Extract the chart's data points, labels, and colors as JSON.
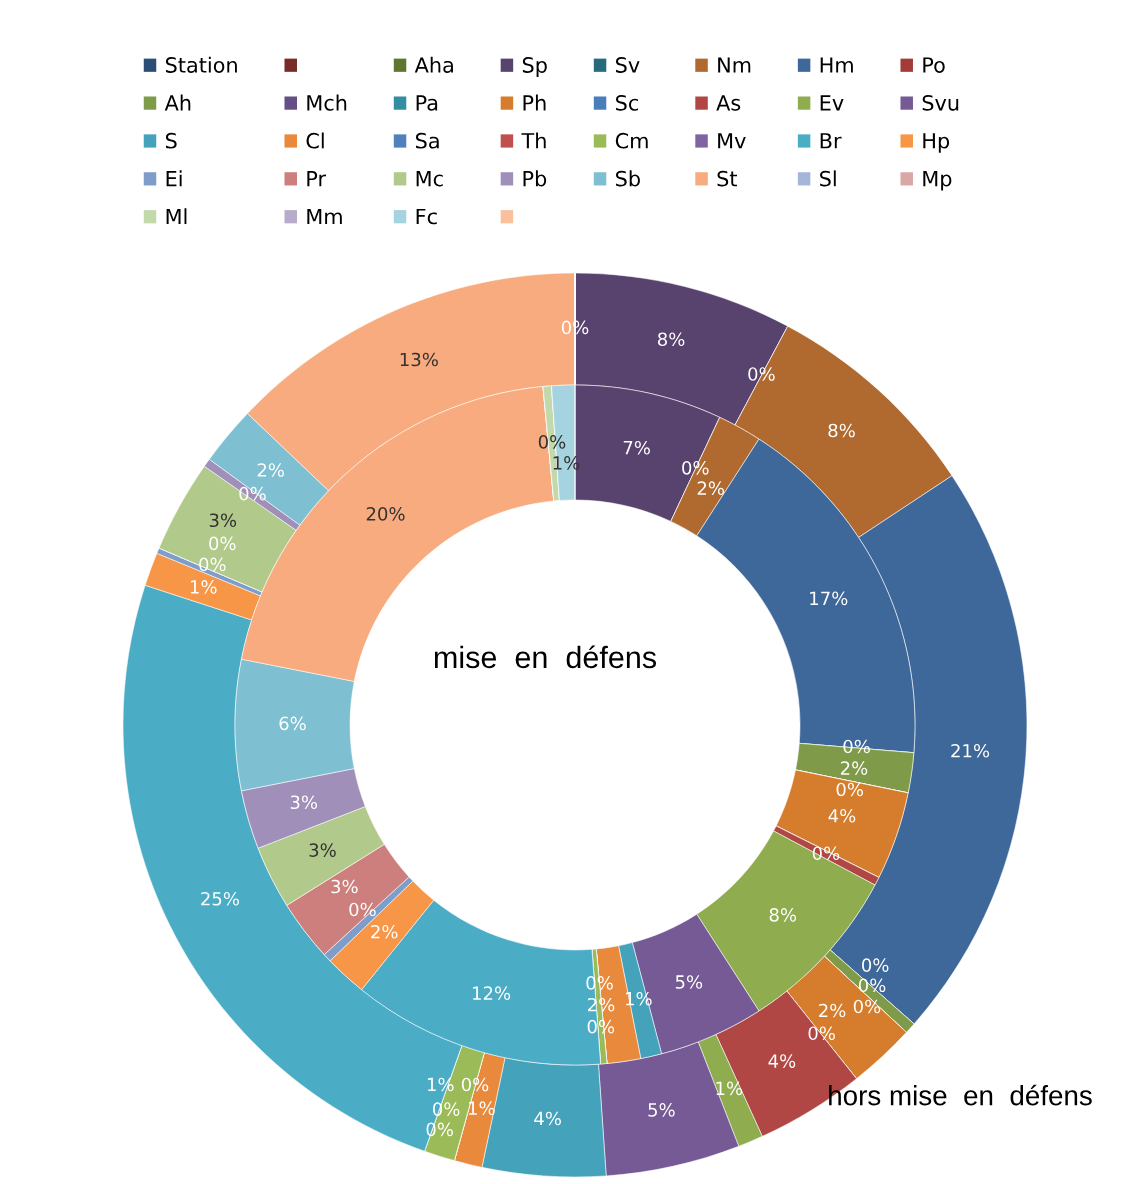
{
  "chart_data": {
    "type": "donut",
    "categories": [
      "Station",
      null,
      "Aha",
      "Sp",
      "Sv",
      "Nm",
      "Hm",
      "Po",
      "Ah",
      "Mch",
      "Pa",
      "Ph",
      "Sc",
      "As",
      "Ev",
      "Svu",
      "S",
      "Cl",
      "Sa",
      "Th",
      "Cm",
      "Mv",
      "Br",
      "Hp",
      "Ei",
      "Pr",
      "Mc",
      "Pb",
      "Sb",
      "St",
      "Sl",
      "Mp",
      "Ml",
      "Mm",
      "Fc",
      null
    ],
    "colors": [
      "#2c4d75",
      "#772c2a",
      "#5f7530",
      "#58436f",
      "#276a7c",
      "#b0692f",
      "#3f689a",
      "#a33b39",
      "#7f9a48",
      "#664f84",
      "#338ea1",
      "#d57d2c",
      "#4a7ebb",
      "#b04744",
      "#8fac4f",
      "#755a96",
      "#44a2ba",
      "#e8893c",
      "#4f81bd",
      "#c0504d",
      "#9bbb59",
      "#8064a2",
      "#4bacc6",
      "#f79646",
      "#7e9dc9",
      "#cd7f7d",
      "#b1c98a",
      "#a08fb8",
      "#7ebfd1",
      "#f7ab7e",
      "#a5b6d9",
      "#d9a7a6",
      "#c4d9ab",
      "#b8acca",
      "#a6d3e0",
      "#fac09c"
    ],
    "series": [
      {
        "values": [
          0,
          0,
          0,
          7.8,
          0,
          7.9,
          20.8,
          0,
          0.4,
          0,
          0,
          2.4,
          0,
          3.9,
          0.9,
          4.8,
          4.4,
          1.0,
          0,
          0,
          1.1,
          0,
          24.6,
          1.2,
          0.2,
          0,
          3.3,
          0.3,
          2.1,
          12.9,
          0,
          0,
          0,
          0,
          0,
          0
        ],
        "value_labels": [
          null,
          null,
          "0%",
          "8%",
          "0%",
          "8%",
          "21%",
          "0%",
          "0%",
          null,
          "0%",
          "2%",
          "0%",
          "4%",
          "1%",
          "5%",
          "4%",
          "1%",
          "0%",
          "0%",
          "1%",
          "0%",
          "25%",
          "1%",
          "0%",
          "0%",
          "3%",
          "0%",
          "2%",
          "13%",
          null,
          null,
          null,
          null,
          null,
          null
        ]
      },
      {
        "values": [
          0,
          0,
          0,
          7.0,
          0,
          2.1,
          17.2,
          0,
          1.9,
          0,
          0,
          4.2,
          0,
          0.4,
          8.1,
          5.0,
          1.0,
          1.6,
          0,
          0,
          0.3,
          0,
          12.0,
          2.0,
          0.4,
          2.9,
          3.0,
          2.8,
          6.2,
          20.4,
          0,
          0,
          0.4,
          0,
          1.1,
          0
        ],
        "value_labels": [
          null,
          null,
          null,
          "7%",
          "0%",
          "2%",
          "17%",
          "0%",
          "2%",
          "0%",
          null,
          "4%",
          null,
          "0%",
          "8%",
          "5%",
          "1%",
          "2%",
          "0%",
          null,
          "0%",
          null,
          "12%",
          "2%",
          "0%",
          "3%",
          "3%",
          "3%",
          "6%",
          "20%",
          null,
          null,
          "0%",
          null,
          "1%",
          null
        ]
      }
    ],
    "legend": "top",
    "annotations": [
      "mise  en  défens",
      "hors mise  en  défens"
    ]
  }
}
